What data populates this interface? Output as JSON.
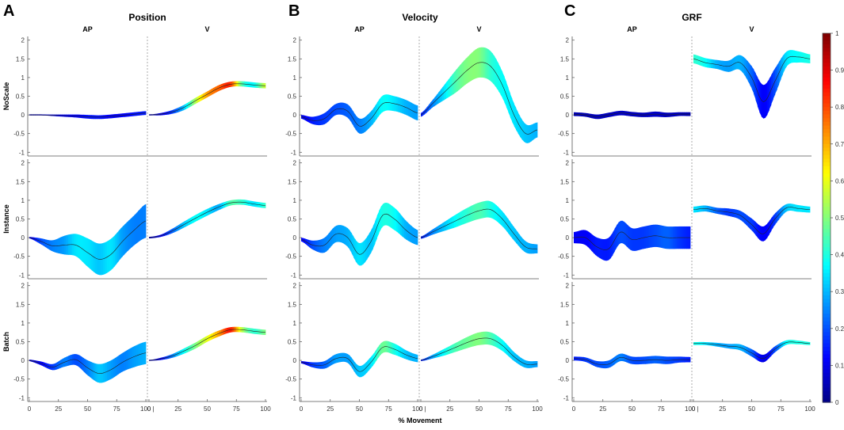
{
  "panel_letters": [
    "A",
    "B",
    "C"
  ],
  "panel_titles": [
    "Position",
    "Velocity",
    "GRF"
  ],
  "sub_titles": [
    "AP",
    "V"
  ],
  "row_labels": [
    "NoScale",
    "Instance",
    "Batch"
  ],
  "xlabel": "% Movement",
  "colorbar": {
    "ticks": [
      "0",
      "0.1",
      "0.2",
      "0.3",
      "0.4",
      "0.5",
      "0.6",
      "0.7",
      "0.8",
      "0.9",
      "1"
    ],
    "min": 0,
    "max": 1,
    "colormap": "jet"
  },
  "colors": {
    "band_low": "#1a2fd0",
    "band_high": "#c81a00",
    "mean_line": "#222222"
  },
  "chart_data": {
    "type": "line",
    "description_fields": "Each subplot: mean curve (x = % movement 0-100) with a variability band colored by attribution magnitude (0-1, jet colormap).",
    "xlim": [
      0,
      100
    ],
    "xticks": [
      "0",
      "25",
      "50",
      "75",
      "100"
    ],
    "ylim": [
      -1.1,
      2.1
    ],
    "yticks": [
      "-1",
      "-0.5",
      "0",
      "0.5",
      "1",
      "1.5",
      "2"
    ],
    "x": [
      0,
      10,
      20,
      30,
      40,
      50,
      60,
      70,
      80,
      90,
      100
    ],
    "panels": [
      {
        "name": "Position",
        "rows": [
          {
            "scale": "NoScale",
            "AP": {
              "mean": [
                0,
                0,
                -0.01,
                -0.02,
                -0.03,
                -0.05,
                -0.06,
                -0.04,
                -0.01,
                0.02,
                0.05
              ],
              "halfwidth": [
                0.01,
                0.01,
                0.02,
                0.03,
                0.04,
                0.05,
                0.05,
                0.05,
                0.05,
                0.05,
                0.05
              ],
              "color": [
                0.05,
                0.08,
                0.1,
                0.12,
                0.12,
                0.14,
                0.14,
                0.12,
                0.12,
                0.14,
                0.15
              ]
            },
            "V": {
              "mean": [
                0,
                0.02,
                0.08,
                0.2,
                0.38,
                0.55,
                0.72,
                0.82,
                0.83,
                0.8,
                0.78
              ],
              "halfwidth": [
                0.01,
                0.03,
                0.05,
                0.07,
                0.08,
                0.08,
                0.08,
                0.07,
                0.07,
                0.07,
                0.07
              ],
              "color": [
                0.05,
                0.1,
                0.18,
                0.32,
                0.55,
                0.72,
                0.78,
                0.82,
                0.45,
                0.38,
                0.58
              ]
            }
          },
          {
            "scale": "Instance",
            "AP": {
              "mean": [
                0,
                -0.1,
                -0.22,
                -0.2,
                -0.2,
                -0.4,
                -0.58,
                -0.45,
                -0.1,
                0.2,
                0.45
              ],
              "halfwidth": [
                0.02,
                0.08,
                0.15,
                0.25,
                0.3,
                0.38,
                0.42,
                0.42,
                0.4,
                0.4,
                0.45
              ],
              "color": [
                0.1,
                0.2,
                0.25,
                0.28,
                0.35,
                0.35,
                0.32,
                0.35,
                0.28,
                0.25,
                0.25
              ]
            },
            "V": {
              "mean": [
                0,
                0.05,
                0.18,
                0.35,
                0.52,
                0.68,
                0.82,
                0.93,
                0.95,
                0.9,
                0.86
              ],
              "halfwidth": [
                0.02,
                0.03,
                0.06,
                0.08,
                0.09,
                0.09,
                0.08,
                0.07,
                0.07,
                0.07,
                0.07
              ],
              "color": [
                0.05,
                0.12,
                0.22,
                0.32,
                0.38,
                0.35,
                0.3,
                0.45,
                0.42,
                0.35,
                0.42
              ]
            }
          },
          {
            "scale": "Batch",
            "AP": {
              "mean": [
                0,
                -0.08,
                -0.18,
                -0.05,
                0.02,
                -0.2,
                -0.35,
                -0.25,
                -0.05,
                0.1,
                0.2
              ],
              "halfwidth": [
                0.02,
                0.05,
                0.08,
                0.12,
                0.15,
                0.2,
                0.25,
                0.25,
                0.25,
                0.28,
                0.3
              ],
              "color": [
                0.08,
                0.12,
                0.18,
                0.25,
                0.2,
                0.25,
                0.32,
                0.28,
                0.25,
                0.28,
                0.3
              ]
            },
            "V": {
              "mean": [
                0,
                0.04,
                0.12,
                0.25,
                0.4,
                0.58,
                0.72,
                0.82,
                0.82,
                0.78,
                0.75
              ],
              "halfwidth": [
                0.01,
                0.03,
                0.05,
                0.07,
                0.08,
                0.08,
                0.08,
                0.07,
                0.07,
                0.07,
                0.07
              ],
              "color": [
                0.05,
                0.12,
                0.25,
                0.38,
                0.5,
                0.6,
                0.72,
                0.85,
                0.55,
                0.42,
                0.5
              ]
            }
          }
        ]
      },
      {
        "name": "Velocity",
        "rows": [
          {
            "scale": "NoScale",
            "AP": {
              "mean": [
                -0.05,
                -0.15,
                -0.1,
                0.15,
                0.1,
                -0.3,
                -0.1,
                0.3,
                0.3,
                0.2,
                0.05
              ],
              "halfwidth": [
                0.05,
                0.1,
                0.15,
                0.15,
                0.18,
                0.2,
                0.2,
                0.22,
                0.2,
                0.2,
                0.2
              ],
              "color": [
                0.1,
                0.15,
                0.18,
                0.2,
                0.22,
                0.25,
                0.3,
                0.38,
                0.35,
                0.3,
                0.28
              ]
            },
            "V": {
              "mean": [
                0,
                0.3,
                0.6,
                0.9,
                1.2,
                1.4,
                1.3,
                0.8,
                0.0,
                -0.5,
                -0.4
              ],
              "halfwidth": [
                0.05,
                0.1,
                0.2,
                0.3,
                0.35,
                0.4,
                0.4,
                0.35,
                0.3,
                0.25,
                0.2
              ],
              "color": [
                0.15,
                0.25,
                0.35,
                0.45,
                0.5,
                0.5,
                0.42,
                0.38,
                0.35,
                0.32,
                0.3
              ]
            }
          },
          {
            "scale": "Instance",
            "AP": {
              "mean": [
                -0.05,
                -0.2,
                -0.2,
                0.1,
                0.0,
                -0.45,
                -0.1,
                0.6,
                0.5,
                0.2,
                0.0
              ],
              "halfwidth": [
                0.05,
                0.12,
                0.2,
                0.22,
                0.25,
                0.3,
                0.3,
                0.3,
                0.3,
                0.25,
                0.2
              ],
              "color": [
                0.12,
                0.2,
                0.25,
                0.28,
                0.3,
                0.35,
                0.32,
                0.4,
                0.38,
                0.3,
                0.28
              ]
            },
            "V": {
              "mean": [
                0,
                0.15,
                0.3,
                0.45,
                0.6,
                0.72,
                0.75,
                0.5,
                0.1,
                -0.25,
                -0.3
              ],
              "halfwidth": [
                0.03,
                0.07,
                0.12,
                0.17,
                0.2,
                0.22,
                0.22,
                0.2,
                0.18,
                0.15,
                0.12
              ],
              "color": [
                0.15,
                0.25,
                0.32,
                0.38,
                0.42,
                0.45,
                0.4,
                0.35,
                0.32,
                0.3,
                0.28
              ]
            }
          },
          {
            "scale": "Batch",
            "AP": {
              "mean": [
                -0.05,
                -0.12,
                -0.12,
                0.05,
                0.05,
                -0.3,
                -0.05,
                0.35,
                0.3,
                0.15,
                0.05
              ],
              "halfwidth": [
                0.03,
                0.07,
                0.1,
                0.12,
                0.12,
                0.15,
                0.15,
                0.15,
                0.15,
                0.12,
                0.1
              ],
              "color": [
                0.1,
                0.18,
                0.22,
                0.28,
                0.28,
                0.32,
                0.35,
                0.48,
                0.4,
                0.32,
                0.3
              ]
            },
            "V": {
              "mean": [
                0,
                0.1,
                0.22,
                0.35,
                0.48,
                0.58,
                0.58,
                0.4,
                0.1,
                -0.1,
                -0.1
              ],
              "halfwidth": [
                0.02,
                0.05,
                0.09,
                0.12,
                0.15,
                0.17,
                0.17,
                0.15,
                0.12,
                0.1,
                0.08
              ],
              "color": [
                0.15,
                0.28,
                0.38,
                0.45,
                0.48,
                0.5,
                0.45,
                0.38,
                0.32,
                0.3,
                0.28
              ]
            }
          }
        ]
      },
      {
        "name": "GRF",
        "rows": [
          {
            "scale": "NoScale",
            "AP": {
              "mean": [
                0.02,
                0.0,
                -0.05,
                0.0,
                0.05,
                0.02,
                0.0,
                0.02,
                0.0,
                0.02,
                0.02
              ],
              "halfwidth": [
                0.05,
                0.05,
                0.06,
                0.06,
                0.06,
                0.06,
                0.06,
                0.07,
                0.06,
                0.05,
                0.05
              ],
              "color": [
                0.05,
                0.05,
                0.06,
                0.06,
                0.07,
                0.06,
                0.06,
                0.07,
                0.06,
                0.06,
                0.05
              ]
            },
            "V": {
              "mean": [
                1.5,
                1.4,
                1.35,
                1.3,
                1.4,
                1.0,
                0.35,
                0.9,
                1.5,
                1.55,
                1.5
              ],
              "halfwidth": [
                0.12,
                0.12,
                0.12,
                0.15,
                0.2,
                0.3,
                0.45,
                0.35,
                0.2,
                0.15,
                0.12
              ],
              "color": [
                0.42,
                0.38,
                0.3,
                0.28,
                0.3,
                0.22,
                0.12,
                0.2,
                0.35,
                0.38,
                0.4
              ]
            }
          },
          {
            "scale": "Instance",
            "AP": {
              "mean": [
                0.0,
                0.0,
                -0.25,
                -0.3,
                0.15,
                -0.05,
                0.0,
                0.05,
                0.0,
                0.0,
                0.0
              ],
              "halfwidth": [
                0.15,
                0.2,
                0.25,
                0.3,
                0.3,
                0.3,
                0.3,
                0.3,
                0.3,
                0.3,
                0.3
              ],
              "color": [
                0.12,
                0.12,
                0.15,
                0.15,
                0.2,
                0.18,
                0.18,
                0.2,
                0.22,
                0.18,
                0.15
              ]
            },
            "V": {
              "mean": [
                0.75,
                0.78,
                0.72,
                0.68,
                0.6,
                0.35,
                0.1,
                0.5,
                0.8,
                0.78,
                0.75
              ],
              "halfwidth": [
                0.08,
                0.08,
                0.08,
                0.1,
                0.12,
                0.16,
                0.2,
                0.15,
                0.1,
                0.09,
                0.08
              ],
              "color": [
                0.35,
                0.3,
                0.22,
                0.18,
                0.2,
                0.18,
                0.12,
                0.18,
                0.32,
                0.35,
                0.35
              ]
            }
          },
          {
            "scale": "Batch",
            "AP": {
              "mean": [
                0.05,
                0.02,
                -0.1,
                -0.1,
                0.08,
                0.0,
                0.0,
                0.02,
                0.0,
                0.02,
                0.02
              ],
              "halfwidth": [
                0.05,
                0.06,
                0.08,
                0.1,
                0.1,
                0.1,
                0.1,
                0.1,
                0.1,
                0.08,
                0.07
              ],
              "color": [
                0.15,
                0.18,
                0.2,
                0.22,
                0.25,
                0.2,
                0.2,
                0.22,
                0.2,
                0.18,
                0.15
              ]
            },
            "V": {
              "mean": [
                0.45,
                0.45,
                0.42,
                0.38,
                0.35,
                0.2,
                0.05,
                0.3,
                0.48,
                0.48,
                0.45
              ],
              "halfwidth": [
                0.04,
                0.04,
                0.05,
                0.06,
                0.08,
                0.1,
                0.1,
                0.08,
                0.06,
                0.05,
                0.04
              ],
              "color": [
                0.4,
                0.35,
                0.3,
                0.28,
                0.3,
                0.22,
                0.1,
                0.2,
                0.38,
                0.4,
                0.4
              ]
            }
          }
        ]
      }
    ]
  }
}
